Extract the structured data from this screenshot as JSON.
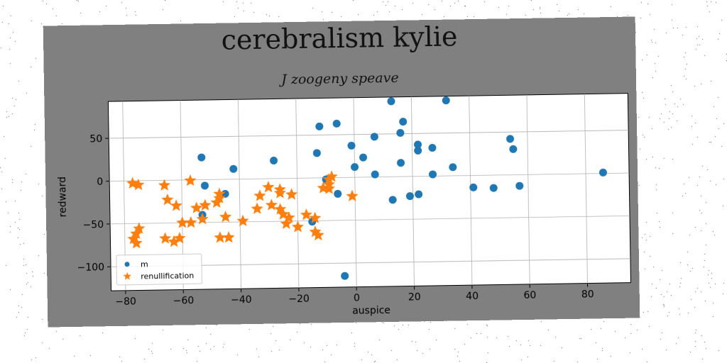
{
  "chart_data": {
    "type": "scatter",
    "title": "cerebralism kylie",
    "subtitle": "J zoogeny speave",
    "xlabel": "auspice",
    "ylabel": "redward",
    "xlim": [
      -85,
      95
    ],
    "ylim": [
      -128,
      93
    ],
    "xticks": [
      -80,
      -60,
      -40,
      -20,
      0,
      20,
      40,
      60,
      80
    ],
    "yticks": [
      -100,
      -50,
      0,
      50
    ],
    "grid": true,
    "legend_position": "lower-left",
    "series": [
      {
        "name": "m",
        "marker": "circle",
        "color": "#1f77b4",
        "points": [
          [
            13,
            88
          ],
          [
            32,
            88
          ],
          [
            -12,
            60
          ],
          [
            -6,
            63
          ],
          [
            17,
            64
          ],
          [
            16,
            51
          ],
          [
            7,
            47
          ],
          [
            -53,
            26
          ],
          [
            -28,
            21
          ],
          [
            -13,
            29
          ],
          [
            -1,
            37
          ],
          [
            3,
            23
          ],
          [
            22,
            37
          ],
          [
            22,
            30
          ],
          [
            27,
            33
          ],
          [
            54,
            42
          ],
          [
            55,
            30
          ],
          [
            -42,
            12
          ],
          [
            0,
            12
          ],
          [
            7,
            3
          ],
          [
            16,
            16
          ],
          [
            27,
            2
          ],
          [
            34,
            10
          ],
          [
            -10,
            -2
          ],
          [
            -52,
            -7
          ],
          [
            -45,
            -17
          ],
          [
            -6,
            -19
          ],
          [
            19,
            -23
          ],
          [
            22,
            -21
          ],
          [
            41,
            -14
          ],
          [
            48,
            -15
          ],
          [
            57,
            -13
          ],
          [
            86,
            1
          ],
          [
            13,
            -27
          ],
          [
            -15,
            -51
          ],
          [
            -53,
            -41
          ],
          [
            -4,
            -115
          ]
        ]
      },
      {
        "name": "renullification",
        "marker": "star",
        "color": "#ff7f0e",
        "points": [
          [
            -77,
            -3
          ],
          [
            -75,
            -5
          ],
          [
            -66,
            -6
          ],
          [
            -65,
            -23
          ],
          [
            -62,
            -30
          ],
          [
            -57,
            -1
          ],
          [
            -55,
            -33
          ],
          [
            -53,
            -46
          ],
          [
            -52,
            -30
          ],
          [
            -57,
            -50
          ],
          [
            -60,
            -50
          ],
          [
            -48,
            -27
          ],
          [
            -47,
            -22
          ],
          [
            -47,
            -17
          ],
          [
            -45,
            -44
          ],
          [
            -47,
            -68
          ],
          [
            -44,
            -68
          ],
          [
            -39,
            -49
          ],
          [
            -34,
            -35
          ],
          [
            -33,
            -20
          ],
          [
            -30,
            -10
          ],
          [
            -29,
            -31
          ],
          [
            -26,
            -13
          ],
          [
            -26,
            -17
          ],
          [
            -26,
            -36
          ],
          [
            -25,
            -42
          ],
          [
            -24,
            -53
          ],
          [
            -23,
            -46
          ],
          [
            -22,
            -19
          ],
          [
            -20,
            -57
          ],
          [
            -17,
            -43
          ],
          [
            -14,
            -47
          ],
          [
            -14,
            -63
          ],
          [
            -13,
            -67
          ],
          [
            -11,
            -12
          ],
          [
            -9,
            -8
          ],
          [
            -9,
            -2
          ],
          [
            -8,
            1
          ],
          [
            -9,
            -13
          ],
          [
            -1,
            -22
          ],
          [
            -75,
            -56
          ],
          [
            -76,
            -62
          ],
          [
            -77,
            -68
          ],
          [
            -76,
            -73
          ],
          [
            -66,
            -68
          ],
          [
            -63,
            -72
          ],
          [
            -61,
            -68
          ]
        ]
      }
    ]
  }
}
